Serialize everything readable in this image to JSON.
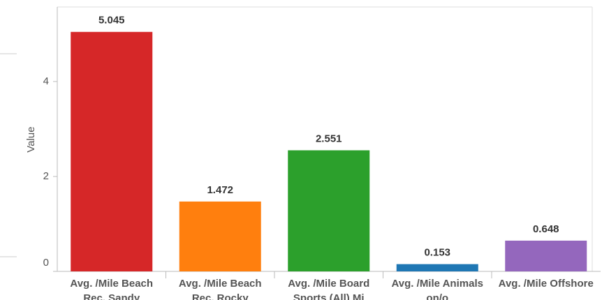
{
  "chart_data": {
    "type": "bar",
    "y_label": "Value",
    "categories": [
      "Avg. /Mile Beach Rec. Sandy",
      "Avg. /Mile Beach Rec. Rocky",
      "Avg. /Mile Board Sports (All) Mi",
      "Avg. /Mile Animals on/o",
      "Avg. /Mile Offshore"
    ],
    "values": [
      5.045,
      1.472,
      2.551,
      0.153,
      0.648
    ],
    "colors": [
      "#d62728",
      "#ff7f0e",
      "#2ca02c",
      "#1f77b4",
      "#9467bd"
    ],
    "ylim": [
      0,
      5.57
    ],
    "yticks": [
      0,
      2,
      4
    ],
    "grid": false
  }
}
